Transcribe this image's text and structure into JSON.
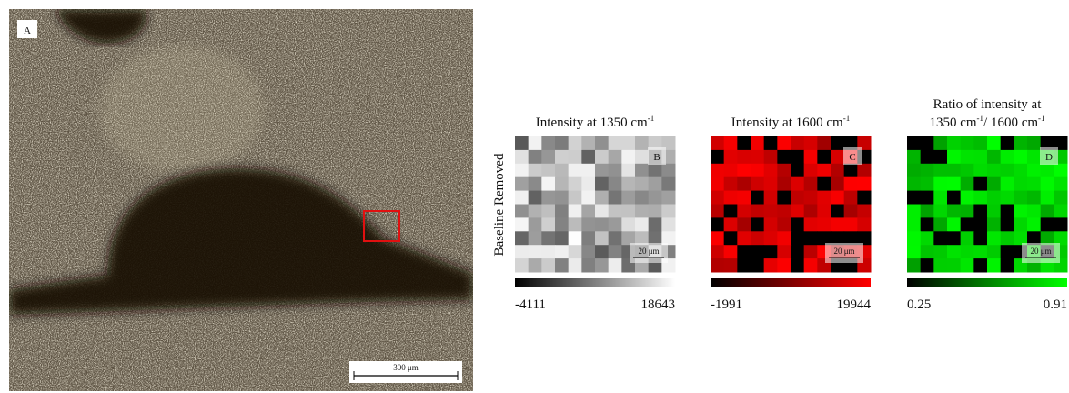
{
  "panel_a": {
    "label": "A",
    "scale_bar": "300 μm"
  },
  "row_label": "Baseline Removed",
  "panels": [
    {
      "label": "B",
      "title": [
        [
          {
            "text": "Intensity at 1350 cm"
          },
          {
            "sup": "-1"
          }
        ]
      ],
      "scale_bar": "20 μm",
      "colors": [
        "#000000",
        "#ffffff"
      ],
      "colorbar": {
        "min": -4111,
        "max": 18643
      }
    },
    {
      "label": "C",
      "title": [
        [
          {
            "text": "Intensity at 1600 cm"
          },
          {
            "sup": "-1"
          }
        ]
      ],
      "scale_bar": "20 μm",
      "colors": [
        "#000000",
        "#ff0000"
      ],
      "colorbar": {
        "min": -1991,
        "max": 19944
      }
    },
    {
      "label": "D",
      "title": [
        [
          {
            "text": "Ratio of intensity at"
          }
        ],
        [
          {
            "text": "1350 cm"
          },
          {
            "sup": "-1"
          },
          {
            "text": "/ 1600 cm"
          },
          {
            "sup": "-1"
          }
        ]
      ],
      "scale_bar": "20 μm",
      "colors": [
        "#000000",
        "#00ff00"
      ],
      "colorbar": {
        "min": 0.25,
        "max": 0.91
      }
    }
  ]
}
